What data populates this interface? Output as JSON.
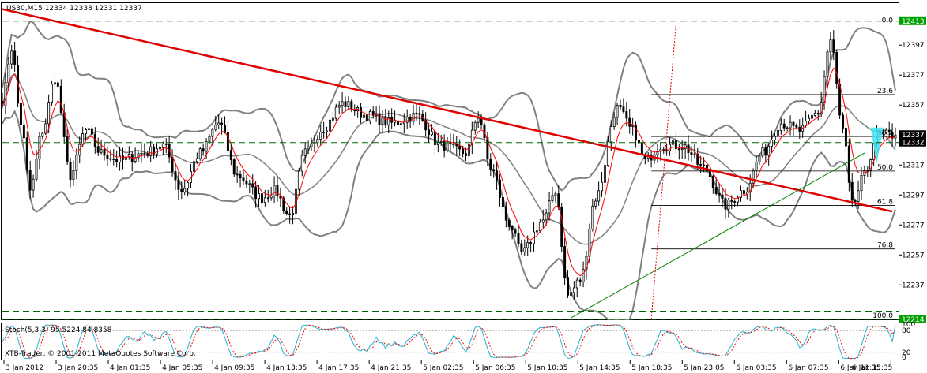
{
  "header": {
    "symbol_info": "US30,M15  12334 12338 12331 12337",
    "stoch_info": "Stoch(5,3,3) 95.5224 84.8358",
    "copyright": "XTB-Trader, © 2001-2011 MetaQuotes Software Corp."
  },
  "colors": {
    "background": "#ffffff",
    "candle": "#000000",
    "bands": "#808080",
    "ma": "#ff0000",
    "trendline_down": "#e00000",
    "trendline_up": "#008000",
    "fib": "#000000",
    "dashed_levels": "#006400",
    "stoch_main": "#20b2d0",
    "stoch_signal": "#ff0000",
    "highlight": "#40e0f0",
    "price_label_bg": "#00a000"
  },
  "chart_data": {
    "type": "candlestick",
    "price_range": [
      12214,
      12425
    ],
    "price_ticks": [
      12397,
      12377,
      12357,
      12337,
      12317,
      12297,
      12277,
      12257,
      12237
    ],
    "time_labels": [
      "3 Jan 2012",
      "3 Jan 20:35",
      "4 Jan 01:35",
      "4 Jan 05:35",
      "4 Jan 09:35",
      "4 Jan 13:35",
      "4 Jan 17:35",
      "4 Jan 21:35",
      "5 Jan 02:35",
      "5 Jan 06:35",
      "5 Jan 10:35",
      "5 Jan 14:35",
      "5 Jan 18:35",
      "5 Jan 23:05",
      "6 Jan 03:35",
      "6 Jan 07:35",
      "6 Jan 11:35",
      "6 Jan 15:35"
    ],
    "highlighted_prices": [
      {
        "label": "12413",
        "value": 12413,
        "style": "green"
      },
      {
        "label": "12337",
        "value": 12337,
        "style": "black"
      },
      {
        "label": "12332",
        "value": 12332,
        "style": "black"
      },
      {
        "label": "12214",
        "value": 12214,
        "style": "green"
      }
    ],
    "dashed_levels": [
      12413,
      12332,
      12219,
      12214
    ],
    "fibonacci": {
      "high": 12411,
      "low": 12214,
      "levels": [
        {
          "label": "0.0",
          "value": 12411
        },
        {
          "label": "23.6",
          "value": 12364
        },
        {
          "label": "38.2",
          "value": 12336
        },
        {
          "label": "50.0",
          "value": 12313
        },
        {
          "label": "61.8",
          "value": 12290
        },
        {
          "label": "76.8",
          "value": 12261
        },
        {
          "label": "100.0",
          "value": 12214
        }
      ]
    },
    "trendline_down": {
      "from": {
        "bar": 0,
        "price": 12421
      },
      "to": {
        "bar": 288,
        "price": 12286
      }
    },
    "trendline_up": {
      "from": {
        "bar": 184,
        "price": 12215
      },
      "to": {
        "bar": 279,
        "price": 12325
      }
    },
    "anchors": [
      {
        "bar": 0,
        "price": 12360
      },
      {
        "bar": 3,
        "price": 12395
      },
      {
        "bar": 6,
        "price": 12345
      },
      {
        "bar": 9,
        "price": 12300
      },
      {
        "bar": 13,
        "price": 12340
      },
      {
        "bar": 17,
        "price": 12375
      },
      {
        "bar": 22,
        "price": 12310
      },
      {
        "bar": 27,
        "price": 12340
      },
      {
        "bar": 32,
        "price": 12325
      },
      {
        "bar": 38,
        "price": 12320
      },
      {
        "bar": 46,
        "price": 12325
      },
      {
        "bar": 52,
        "price": 12330
      },
      {
        "bar": 58,
        "price": 12300
      },
      {
        "bar": 64,
        "price": 12325
      },
      {
        "bar": 70,
        "price": 12345
      },
      {
        "bar": 76,
        "price": 12310
      },
      {
        "bar": 84,
        "price": 12295
      },
      {
        "bar": 88,
        "price": 12300
      },
      {
        "bar": 93,
        "price": 12283
      },
      {
        "bar": 98,
        "price": 12325
      },
      {
        "bar": 104,
        "price": 12342
      },
      {
        "bar": 110,
        "price": 12358
      },
      {
        "bar": 118,
        "price": 12350
      },
      {
        "bar": 126,
        "price": 12345
      },
      {
        "bar": 134,
        "price": 12350
      },
      {
        "bar": 142,
        "price": 12330
      },
      {
        "bar": 150,
        "price": 12325
      },
      {
        "bar": 154,
        "price": 12350
      },
      {
        "bar": 158,
        "price": 12315
      },
      {
        "bar": 164,
        "price": 12278
      },
      {
        "bar": 168,
        "price": 12258
      },
      {
        "bar": 175,
        "price": 12280
      },
      {
        "bar": 179,
        "price": 12300
      },
      {
        "bar": 183,
        "price": 12230
      },
      {
        "bar": 187,
        "price": 12240
      },
      {
        "bar": 192,
        "price": 12295
      },
      {
        "bar": 199,
        "price": 12355
      },
      {
        "bar": 204,
        "price": 12340
      },
      {
        "bar": 208,
        "price": 12320
      },
      {
        "bar": 213,
        "price": 12330
      },
      {
        "bar": 220,
        "price": 12330
      },
      {
        "bar": 227,
        "price": 12315
      },
      {
        "bar": 234,
        "price": 12290
      },
      {
        "bar": 240,
        "price": 12300
      },
      {
        "bar": 246,
        "price": 12325
      },
      {
        "bar": 252,
        "price": 12345
      },
      {
        "bar": 258,
        "price": 12340
      },
      {
        "bar": 264,
        "price": 12352
      },
      {
        "bar": 268,
        "price": 12400
      },
      {
        "bar": 272,
        "price": 12340
      },
      {
        "bar": 275,
        "price": 12290
      },
      {
        "bar": 279,
        "price": 12310
      },
      {
        "bar": 283,
        "price": 12337
      }
    ],
    "stoch_levels": [
      80,
      20
    ],
    "stoch_range": [
      0,
      100
    ]
  }
}
